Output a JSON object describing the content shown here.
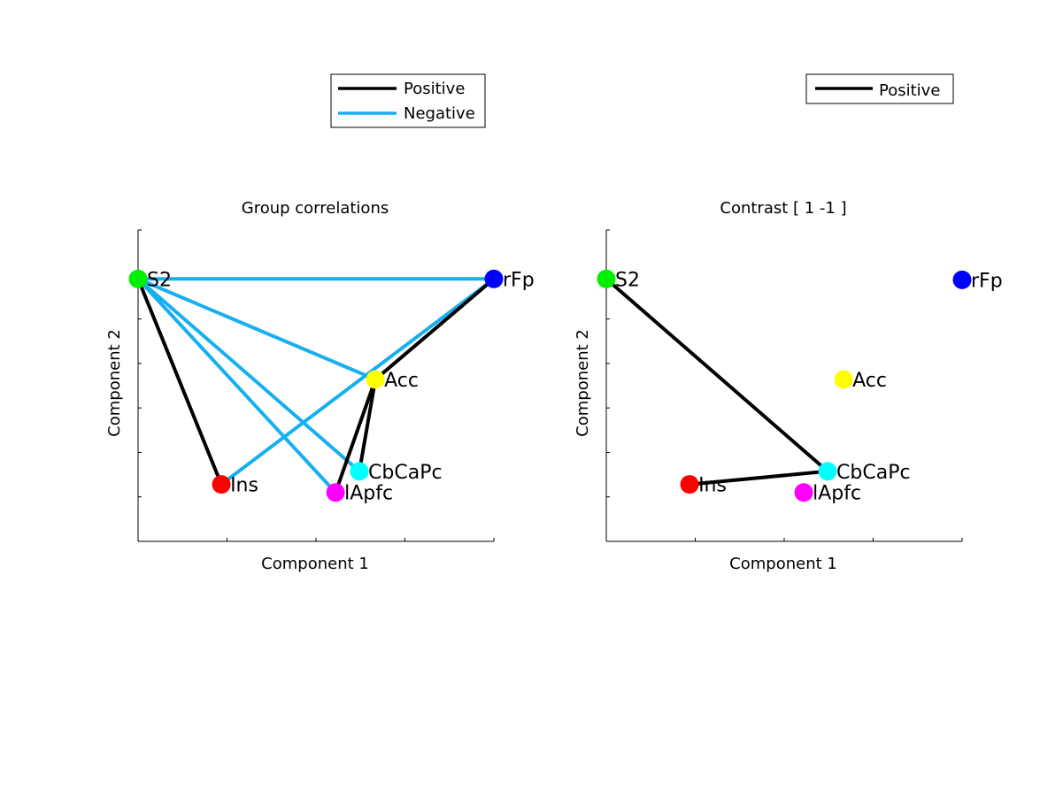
{
  "figure": {
    "panels": [
      {
        "id": "left",
        "title": "Group correlations",
        "xlabel": "Component 1",
        "ylabel": "Component 2",
        "legend": [
          {
            "label": "Positive",
            "color": "#000000"
          },
          {
            "label": "Negative",
            "color": "#17aff0"
          }
        ]
      },
      {
        "id": "right",
        "title": "Contrast [ 1 -1 ]",
        "xlabel": "Component 1",
        "ylabel": "Component 2",
        "legend": [
          {
            "label": "Positive",
            "color": "#000000"
          }
        ]
      }
    ]
  },
  "chart_data": [
    {
      "type": "network",
      "title": "Group correlations",
      "xlabel": "Component 1",
      "ylabel": "Component 2",
      "nodes": [
        {
          "id": "S2",
          "label": "S2",
          "color": "#00ee00",
          "x": 0.0,
          "y": 0.843
        },
        {
          "id": "rFp",
          "label": "rFp",
          "color": "#0000ff",
          "x": 1.0,
          "y": 0.843
        },
        {
          "id": "Acc",
          "label": "Acc",
          "color": "#ffff00",
          "x": 0.667,
          "y": 0.52
        },
        {
          "id": "CbCaPc",
          "label": "CbCaPc",
          "color": "#00ffff",
          "x": 0.622,
          "y": 0.225
        },
        {
          "id": "Ins",
          "label": "Ins",
          "color": "#ff0000",
          "x": 0.234,
          "y": 0.183
        },
        {
          "id": "lApfc",
          "label": "lApfc",
          "color": "#ff00ff",
          "x": 0.555,
          "y": 0.157
        }
      ],
      "edges": [
        {
          "source": "S2",
          "target": "rFp",
          "sign": "Negative"
        },
        {
          "source": "S2",
          "target": "Acc",
          "sign": "Negative"
        },
        {
          "source": "S2",
          "target": "CbCaPc",
          "sign": "Negative"
        },
        {
          "source": "S2",
          "target": "lApfc",
          "sign": "Negative"
        },
        {
          "source": "Ins",
          "target": "rFp",
          "sign": "Negative"
        },
        {
          "source": "S2",
          "target": "Ins",
          "sign": "Positive"
        },
        {
          "source": "rFp",
          "target": "Acc",
          "sign": "Positive"
        },
        {
          "source": "Acc",
          "target": "lApfc",
          "sign": "Positive"
        },
        {
          "source": "Acc",
          "target": "CbCaPc",
          "sign": "Positive"
        }
      ]
    },
    {
      "type": "network",
      "title": "Contrast [ 1 -1 ]",
      "xlabel": "Component 1",
      "ylabel": "Component 2",
      "nodes": [
        {
          "id": "S2",
          "label": "S2",
          "color": "#00ee00",
          "x": 0.0,
          "y": 0.843
        },
        {
          "id": "rFp",
          "label": "rFp",
          "color": "#0000ff",
          "x": 1.0,
          "y": 0.84
        },
        {
          "id": "Acc",
          "label": "Acc",
          "color": "#ffff00",
          "x": 0.667,
          "y": 0.52
        },
        {
          "id": "CbCaPc",
          "label": "CbCaPc",
          "color": "#00ffff",
          "x": 0.622,
          "y": 0.225
        },
        {
          "id": "Ins",
          "label": "Ins",
          "color": "#ff0000",
          "x": 0.234,
          "y": 0.183
        },
        {
          "id": "lApfc",
          "label": "lApfc",
          "color": "#ff00ff",
          "x": 0.555,
          "y": 0.157
        }
      ],
      "edges": [
        {
          "source": "S2",
          "target": "CbCaPc",
          "sign": "Positive"
        },
        {
          "source": "Ins",
          "target": "CbCaPc",
          "sign": "Positive"
        }
      ]
    }
  ]
}
